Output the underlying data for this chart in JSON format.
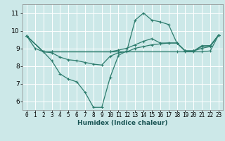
{
  "xlabel": "Humidex (Indice chaleur)",
  "bg_color": "#cce8e8",
  "grid_color": "#b0d8d8",
  "line_color": "#2e7d6e",
  "xlim": [
    -0.5,
    23.5
  ],
  "ylim": [
    5.5,
    11.5
  ],
  "xticks": [
    0,
    1,
    2,
    3,
    4,
    5,
    6,
    7,
    8,
    9,
    10,
    11,
    12,
    13,
    14,
    15,
    16,
    17,
    18,
    19,
    20,
    21,
    22,
    23
  ],
  "yticks": [
    6,
    7,
    8,
    9,
    10,
    11
  ],
  "line1_x": [
    0,
    1,
    2,
    3,
    4,
    5,
    6,
    7,
    8,
    9,
    10,
    11,
    12,
    13,
    14,
    15,
    16,
    17,
    18,
    19,
    20,
    21,
    22,
    23
  ],
  "line1_y": [
    9.7,
    9.0,
    8.8,
    8.3,
    7.55,
    7.25,
    7.1,
    6.5,
    5.65,
    5.65,
    7.35,
    8.6,
    8.85,
    10.6,
    11.0,
    10.6,
    10.5,
    10.35,
    9.3,
    8.85,
    8.85,
    9.15,
    9.15,
    9.75
  ],
  "line2_x": [
    0,
    2,
    3,
    10,
    18,
    19,
    20,
    21,
    22,
    23
  ],
  "line2_y": [
    9.7,
    8.8,
    8.8,
    8.8,
    8.8,
    8.8,
    8.8,
    8.8,
    8.85,
    9.75
  ],
  "line3_x": [
    0,
    2,
    3,
    10,
    11,
    12,
    13,
    14,
    15,
    16,
    17,
    18,
    19,
    20,
    21,
    22,
    23
  ],
  "line3_y": [
    9.7,
    8.8,
    8.8,
    8.8,
    8.9,
    9.0,
    9.2,
    9.4,
    9.55,
    9.3,
    9.3,
    9.3,
    8.85,
    8.85,
    9.0,
    9.1,
    9.75
  ],
  "line4_x": [
    0,
    2,
    3,
    4,
    5,
    6,
    7,
    8,
    9,
    10,
    11,
    12,
    13,
    14,
    15,
    16,
    17,
    18,
    19,
    20,
    21,
    22,
    23
  ],
  "line4_y": [
    9.7,
    8.8,
    8.75,
    8.5,
    8.35,
    8.3,
    8.2,
    8.1,
    8.05,
    8.55,
    8.75,
    8.8,
    9.0,
    9.1,
    9.2,
    9.25,
    9.3,
    9.3,
    8.85,
    8.85,
    9.1,
    9.15,
    9.75
  ]
}
